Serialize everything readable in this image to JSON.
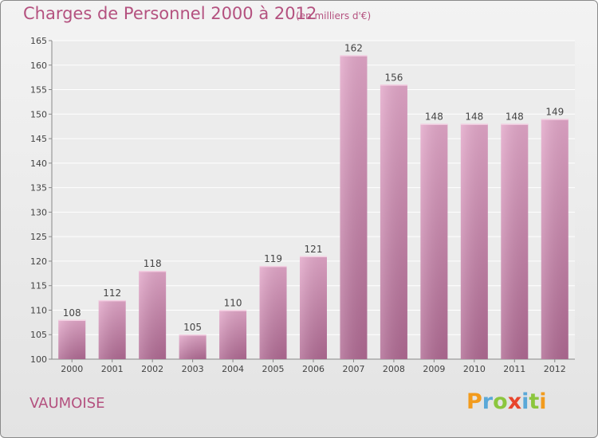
{
  "chart_data": {
    "type": "bar",
    "title": "Charges de Personnel 2000 à 2012",
    "subtitle": "(en milliers d'€)",
    "categories": [
      "2000",
      "2001",
      "2002",
      "2003",
      "2004",
      "2005",
      "2006",
      "2007",
      "2008",
      "2009",
      "2010",
      "2011",
      "2012"
    ],
    "values": [
      108,
      112,
      118,
      105,
      110,
      119,
      121,
      162,
      156,
      148,
      148,
      148,
      149
    ],
    "ylim": [
      100,
      165
    ],
    "yticks": [
      100,
      105,
      110,
      115,
      120,
      125,
      130,
      135,
      140,
      145,
      150,
      155,
      160,
      165
    ],
    "grid": true,
    "legend": "none",
    "bar_color": "#d68fb6"
  },
  "commune": "VAUMOISE",
  "logo": {
    "letters": [
      "P",
      "r",
      "o",
      "x",
      "i",
      "t",
      "i"
    ],
    "colors": [
      "#f29b1d",
      "#5aa8d8",
      "#8cc63e",
      "#e8452c",
      "#5aa8d8",
      "#8cc63e",
      "#f29b1d"
    ]
  }
}
